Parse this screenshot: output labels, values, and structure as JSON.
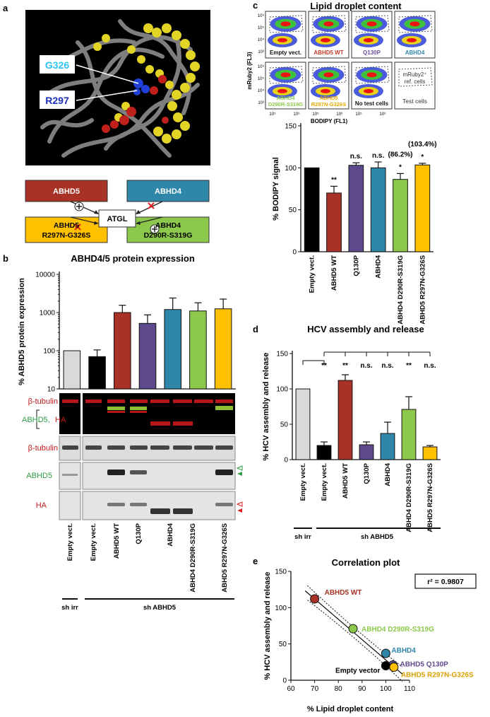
{
  "panels": {
    "a": {
      "label": "a",
      "structure_labels": [
        {
          "text": "G326",
          "color": "#29c5f0"
        },
        {
          "text": "R297",
          "color": "#1a2fb8"
        }
      ],
      "scheme": {
        "center": "ATGL",
        "boxes": [
          {
            "line1": "ABHD5",
            "line2": "",
            "fill": "#a93226",
            "text_color": "#ffffff",
            "arrow": "activates"
          },
          {
            "line1": "ABHD4",
            "line2": "",
            "fill": "#2e86a8",
            "text_color": "#ffffff",
            "arrow": "no effect"
          },
          {
            "line1": "ABHD5",
            "line2": "R297N-G326S",
            "fill": "#ffc000",
            "text_color": "#111111",
            "arrow": "no effect"
          },
          {
            "line1": "ABHD4",
            "line2": "D290R-S319G",
            "fill": "#8cc84b",
            "text_color": "#111111",
            "arrow": "activates"
          }
        ]
      }
    },
    "b": {
      "label": "b",
      "title": "ABHD4/5 protein expression",
      "blot_labels": {
        "tubulin_merge": "β-tubulin",
        "abhd5": "ABHD5,",
        "ha": "HA",
        "tubulin": "β-tubulin",
        "abhd5_single": "ABHD5",
        "ha_single": "HA"
      },
      "lanes": [
        "Empty vect.",
        "Empty vect.",
        "ABHD5 WT",
        "Q130P",
        "ABHD4",
        "ABHD4 D290R-S319G",
        "ABHD5 R297N-G326S"
      ],
      "groups": [
        "sh irr",
        "sh ABHD5"
      ]
    },
    "c": {
      "label": "c",
      "title": "Lipid droplet content",
      "flow": {
        "ylabel": "mRuby2 (FL3)",
        "xlabel": "BODIPY (FL1)",
        "y_ticks": [
          "10⁶",
          "10⁵",
          "10⁴",
          "10³"
        ],
        "x_ticks": [
          "10⁵",
          "10⁶"
        ],
        "tiles": [
          {
            "line1": "Empty vect.",
            "line2": "",
            "color": "#111111"
          },
          {
            "line1": "ABHD5 WT",
            "line2": "",
            "color": "#c0392b"
          },
          {
            "line1": "Q130P",
            "line2": "",
            "color": "#6c4d9c"
          },
          {
            "line1": "ABHD4",
            "line2": "",
            "color": "#2e86a8"
          },
          {
            "line1": "ABHD4",
            "line2": "D290R-S319G",
            "color": "#8cc84b"
          },
          {
            "line1": "ABHD5",
            "line2": "R297N-G326S",
            "color": "#e6a800"
          },
          {
            "line1": "No test cells",
            "line2": "",
            "color": "#111111"
          }
        ],
        "legend_tile": {
          "line1": "mRuby2⁺",
          "line2": "ref. cells",
          "line3": "Test cells"
        }
      }
    },
    "d": {
      "label": "d",
      "title": "HCV assembly and release"
    },
    "e": {
      "label": "e",
      "title": "Correlation plot"
    }
  },
  "chart_data": [
    {
      "id": "b",
      "type": "bar",
      "title": "ABHD4/5 protein expression",
      "ylabel": "% ABHD5 protein expression",
      "yscale": "log",
      "ylim": [
        10,
        10000
      ],
      "yticks": [
        "10",
        "100",
        "1000",
        "10000"
      ],
      "ytick_values": [
        10,
        100,
        1000,
        10000
      ],
      "categories": [
        "Empty vect.",
        "Empty vect.",
        "ABHD5 WT",
        "Q130P",
        "ABHD4",
        "ABHD4 D290R-S319G",
        "ABHD5 R297N-G326S"
      ],
      "values": [
        100,
        70,
        1000,
        520,
        1200,
        1100,
        1250
      ],
      "errors": [
        0,
        35,
        550,
        350,
        1200,
        700,
        1000
      ],
      "colors": [
        "#d9d9d9",
        "#000000",
        "#a93226",
        "#5e4a8b",
        "#2e86a8",
        "#8cc84b",
        "#ffc000"
      ]
    },
    {
      "id": "c",
      "type": "bar",
      "title": "Lipid droplet content",
      "ylabel": "% BODIPY signal",
      "ylim": [
        0,
        150
      ],
      "yticks": [
        "0",
        "50",
        "100",
        "150"
      ],
      "ytick_values": [
        0,
        50,
        100,
        150
      ],
      "categories": [
        "Empty vect.",
        "ABHD5 WT",
        "Q130P",
        "ABHD4",
        "ABHD4 D290R-S319G",
        "ABHD5 R297N-G326S"
      ],
      "values": [
        100,
        70,
        103,
        100,
        86.2,
        103.4
      ],
      "errors": [
        0,
        8,
        3,
        7,
        7,
        2
      ],
      "colors": [
        "#000000",
        "#a93226",
        "#5e4a8b",
        "#2e86a8",
        "#8cc84b",
        "#ffc000"
      ],
      "significance": [
        "",
        "**",
        "n.s.",
        "n.s.",
        "*",
        "*"
      ],
      "annotations": [
        "",
        "",
        "",
        "",
        "(86.2%)",
        "(103.4%)"
      ]
    },
    {
      "id": "d",
      "type": "bar",
      "title": "HCV assembly and release",
      "ylabel": "% HCV assembly and release",
      "ylim": [
        0,
        150
      ],
      "yticks": [
        "0",
        "50",
        "100",
        "150"
      ],
      "ytick_values": [
        0,
        50,
        100,
        150
      ],
      "categories": [
        "Empty vect.",
        "Empty vect.",
        "ABHD5 WT",
        "Q130P",
        "ABHD4",
        "ABHD4 D290R-S319G",
        "ABHD5 R297N-G326S"
      ],
      "values": [
        100,
        20,
        112,
        21,
        37,
        71,
        18
      ],
      "errors": [
        0,
        5,
        8,
        4,
        16,
        18,
        2
      ],
      "colors": [
        "#d9d9d9",
        "#000000",
        "#a93226",
        "#5e4a8b",
        "#2e86a8",
        "#8cc84b",
        "#ffc000"
      ],
      "significance": [
        "",
        "**",
        "**",
        "n.s.",
        "n.s.",
        "**",
        "n.s."
      ],
      "groups": [
        "sh irr",
        "sh ABHD5"
      ]
    },
    {
      "id": "e",
      "type": "scatter",
      "title": "Correlation plot",
      "xlabel": "% Lipid droplet content",
      "ylabel": "% HCV assembly and release",
      "xlim": [
        60,
        110
      ],
      "ylim": [
        0,
        150
      ],
      "xticks": [
        "60",
        "70",
        "80",
        "90",
        "100",
        "110"
      ],
      "xtick_values": [
        60,
        70,
        80,
        90,
        100,
        110
      ],
      "yticks": [
        "0",
        "50",
        "100",
        "150"
      ],
      "ytick_values": [
        0,
        50,
        100,
        150
      ],
      "r2": "r² = 0.9807",
      "points": [
        {
          "name": "ABHD5 WT",
          "x": 70,
          "y": 112,
          "color": "#a93226"
        },
        {
          "name": "ABHD4 D290R-S319G",
          "x": 86.2,
          "y": 71,
          "color": "#8cc84b"
        },
        {
          "name": "ABHD4",
          "x": 100,
          "y": 37,
          "color": "#2e86a8"
        },
        {
          "name": "ABHD5 Q130P",
          "x": 103,
          "y": 21,
          "color": "#5e4a8b"
        },
        {
          "name": "Empty vector",
          "x": 100,
          "y": 20,
          "color": "#000000"
        },
        {
          "name": "ABHD5 R297N-G326S",
          "x": 103.4,
          "y": 18,
          "color": "#ffc000"
        }
      ],
      "fit": {
        "slope": -2.8,
        "intercept": 308
      }
    }
  ]
}
